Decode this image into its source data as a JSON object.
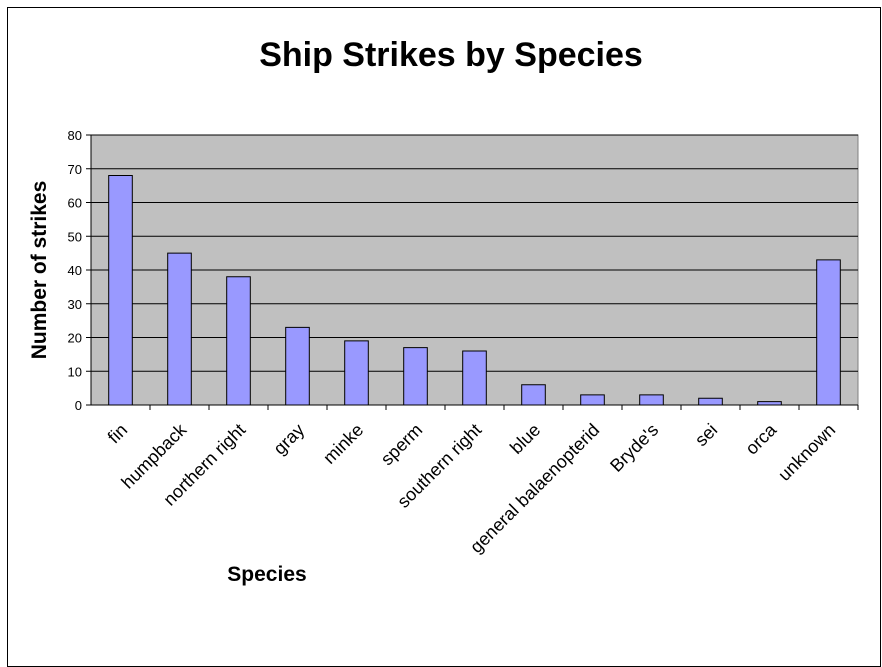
{
  "chart_data": {
    "type": "bar",
    "title": "Ship Strikes by Species",
    "xlabel": "Species",
    "ylabel": "Number of strikes",
    "categories": [
      "fin",
      "humpback",
      "northern right",
      "gray",
      "minke",
      "sperm",
      "southern right",
      "blue",
      "general balaenopterid",
      "Bryde's",
      "sei",
      "orca",
      "unknown"
    ],
    "values": [
      68,
      45,
      38,
      23,
      19,
      17,
      16,
      6,
      3,
      3,
      2,
      1,
      43
    ],
    "ylim": [
      0,
      80
    ],
    "yticks": [
      "0",
      "10",
      "20",
      "30",
      "40",
      "50",
      "60",
      "70",
      "80"
    ],
    "grid": true,
    "legend": "none",
    "colors": {
      "plot_background": "#c0c0c0",
      "bar_fill": "#9999ff",
      "bar_stroke": "#000000",
      "gridline": "#000000"
    }
  }
}
